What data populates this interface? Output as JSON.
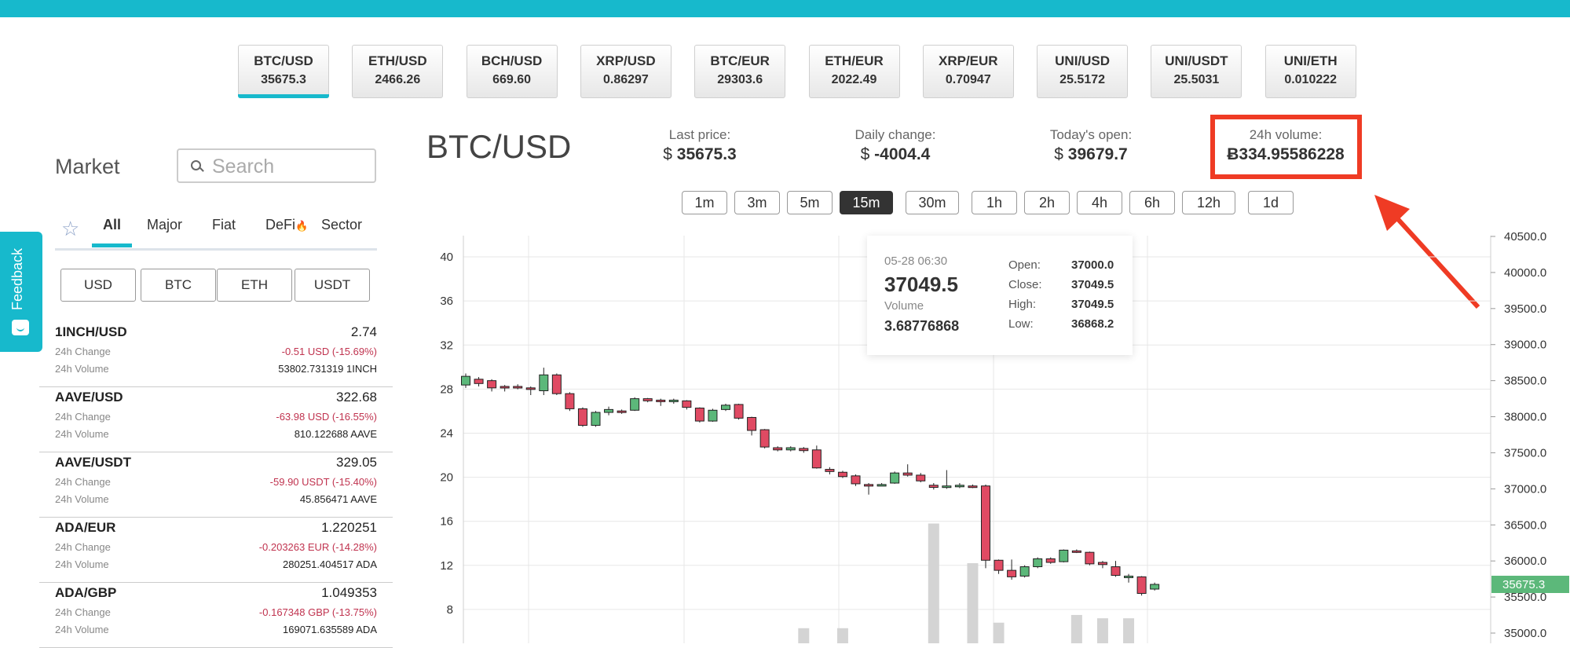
{
  "pairs": [
    {
      "name": "BTC/USD",
      "price": "35675.3"
    },
    {
      "name": "ETH/USD",
      "price": "2466.26"
    },
    {
      "name": "BCH/USD",
      "price": "669.60"
    },
    {
      "name": "XRP/USD",
      "price": "0.86297"
    },
    {
      "name": "BTC/EUR",
      "price": "29303.6"
    },
    {
      "name": "ETH/EUR",
      "price": "2022.49"
    },
    {
      "name": "XRP/EUR",
      "price": "0.70947"
    },
    {
      "name": "UNI/USD",
      "price": "25.5172"
    },
    {
      "name": "UNI/USDT",
      "price": "25.5031"
    },
    {
      "name": "UNI/ETH",
      "price": "0.010222"
    }
  ],
  "feedback_label": "Feedback",
  "market": {
    "title": "Market",
    "search_placeholder": "Search",
    "tabs": [
      "All",
      "Major",
      "Fiat",
      "DeFi",
      "Sector"
    ],
    "quote_filters": [
      "USD",
      "BTC",
      "ETH",
      "USDT"
    ],
    "change_label": "24h Change",
    "volume_label": "24h Volume",
    "items": [
      {
        "pair": "1INCH/USD",
        "price": "2.74",
        "change": "-0.51 USD  (-15.69%)",
        "volume": "53802.731319 1INCH"
      },
      {
        "pair": "AAVE/USD",
        "price": "322.68",
        "change": "-63.98 USD  (-16.55%)",
        "volume": "810.122688 AAVE"
      },
      {
        "pair": "AAVE/USDT",
        "price": "329.05",
        "change": "-59.90 USDT  (-15.40%)",
        "volume": "45.856471 AAVE"
      },
      {
        "pair": "ADA/EUR",
        "price": "1.220251",
        "change": "-0.203263 EUR  (-14.28%)",
        "volume": "280251.404517 ADA"
      },
      {
        "pair": "ADA/GBP",
        "price": "1.049353",
        "change": "-0.167348 GBP  (-13.75%)",
        "volume": "169071.635589 ADA"
      }
    ]
  },
  "header": {
    "pair": "BTC/USD",
    "last_price_label": "Last price:",
    "last_price_symbol": "$",
    "last_price": "35675.3",
    "daily_change_label": "Daily change:",
    "daily_change_symbol": "$",
    "daily_change": "-4004.4",
    "open_label": "Today's open:",
    "open_symbol": "$",
    "open": "39679.7",
    "volume_label": "24h volume:",
    "volume_symbol": "Ƀ",
    "volume": "334.95586228"
  },
  "timeframes": [
    "1m",
    "3m",
    "5m",
    "15m",
    "30m",
    "1h",
    "2h",
    "4h",
    "6h",
    "12h",
    "1d"
  ],
  "active_timeframe": "15m",
  "tooltip": {
    "date": "05-28 06:30",
    "price": "37049.5",
    "volume_label": "Volume",
    "volume": "3.68776868",
    "open_label": "Open:",
    "open": "37000.0",
    "close_label": "Close:",
    "close": "37049.5",
    "high_label": "High:",
    "high": "37049.5",
    "low_label": "Low:",
    "low": "36868.2"
  },
  "chart_data": {
    "type": "candlestick",
    "price_axis_ticks": [
      "35000.0",
      "35500.0",
      "36000.0",
      "36500.0",
      "37000.0",
      "37500.0",
      "38000.0",
      "38500.0",
      "39000.0",
      "39500.0",
      "40000.0",
      "40500.0"
    ],
    "price_range": [
      35000,
      40500
    ],
    "volume_axis_ticks": [
      "8",
      "12",
      "16",
      "20",
      "24",
      "28",
      "32",
      "36",
      "40"
    ],
    "volume_range": [
      5,
      41.5
    ],
    "current_price_label": "35675.3",
    "current_price": 35675.3,
    "candles": [
      {
        "o": 38440,
        "c": 38560,
        "h": 38600,
        "l": 38400
      },
      {
        "o": 38520,
        "c": 38460,
        "h": 38550,
        "l": 38420
      },
      {
        "o": 38500,
        "c": 38400,
        "h": 38520,
        "l": 38350
      },
      {
        "o": 38420,
        "c": 38400,
        "h": 38440,
        "l": 38350
      },
      {
        "o": 38420,
        "c": 38400,
        "h": 38450,
        "l": 38380
      },
      {
        "o": 38400,
        "c": 38380,
        "h": 38420,
        "l": 38300
      },
      {
        "o": 38360,
        "c": 38580,
        "h": 38680,
        "l": 38300
      },
      {
        "o": 38580,
        "c": 38320,
        "h": 38600,
        "l": 38300
      },
      {
        "o": 38320,
        "c": 38110,
        "h": 38340,
        "l": 38080
      },
      {
        "o": 38110,
        "c": 37880,
        "h": 38130,
        "l": 37860
      },
      {
        "o": 37880,
        "c": 38060,
        "h": 38080,
        "l": 37860
      },
      {
        "o": 38060,
        "c": 38100,
        "h": 38140,
        "l": 38020
      },
      {
        "o": 38080,
        "c": 38060,
        "h": 38100,
        "l": 38040
      },
      {
        "o": 38090,
        "c": 38250,
        "h": 38270,
        "l": 38080
      },
      {
        "o": 38250,
        "c": 38220,
        "h": 38260,
        "l": 38200
      },
      {
        "o": 38230,
        "c": 38210,
        "h": 38250,
        "l": 38150
      },
      {
        "o": 38210,
        "c": 38230,
        "h": 38250,
        "l": 38180
      },
      {
        "o": 38220,
        "c": 38130,
        "h": 38230,
        "l": 38100
      },
      {
        "o": 38120,
        "c": 37940,
        "h": 38130,
        "l": 37920
      },
      {
        "o": 37940,
        "c": 38090,
        "h": 38110,
        "l": 37930
      },
      {
        "o": 38100,
        "c": 38160,
        "h": 38180,
        "l": 38080
      },
      {
        "o": 38170,
        "c": 37980,
        "h": 38180,
        "l": 37960
      },
      {
        "o": 37990,
        "c": 37810,
        "h": 38000,
        "l": 37740
      },
      {
        "o": 37820,
        "c": 37580,
        "h": 37830,
        "l": 37560
      },
      {
        "o": 37570,
        "c": 37540,
        "h": 37590,
        "l": 37520
      },
      {
        "o": 37540,
        "c": 37570,
        "h": 37590,
        "l": 37520
      },
      {
        "o": 37560,
        "c": 37530,
        "h": 37580,
        "l": 37500
      },
      {
        "o": 37540,
        "c": 37290,
        "h": 37600,
        "l": 37280
      },
      {
        "o": 37270,
        "c": 37240,
        "h": 37300,
        "l": 37200
      },
      {
        "o": 37230,
        "c": 37170,
        "h": 37250,
        "l": 37150
      },
      {
        "o": 37180,
        "c": 37070,
        "h": 37200,
        "l": 37040
      },
      {
        "o": 37060,
        "c": 37040,
        "h": 37080,
        "l": 36920
      },
      {
        "o": 37050,
        "c": 37060,
        "h": 37080,
        "l": 37040
      },
      {
        "o": 37080,
        "c": 37220,
        "h": 37240,
        "l": 37070
      },
      {
        "o": 37220,
        "c": 37190,
        "h": 37340,
        "l": 37170
      },
      {
        "o": 37190,
        "c": 37110,
        "h": 37220,
        "l": 37090
      },
      {
        "o": 37050,
        "c": 37020,
        "h": 37080,
        "l": 36990
      },
      {
        "o": 37020,
        "c": 37040,
        "h": 37260,
        "l": 37000
      },
      {
        "o": 37030,
        "c": 37050,
        "h": 37080,
        "l": 37010
      },
      {
        "o": 37040,
        "c": 37030,
        "h": 37060,
        "l": 37010
      },
      {
        "o": 37040,
        "c": 36010,
        "h": 37060,
        "l": 35900
      },
      {
        "o": 36010,
        "c": 35870,
        "h": 36020,
        "l": 35820
      },
      {
        "o": 35870,
        "c": 35780,
        "h": 36020,
        "l": 35740
      },
      {
        "o": 35790,
        "c": 35920,
        "h": 35940,
        "l": 35770
      },
      {
        "o": 35920,
        "c": 36030,
        "h": 36050,
        "l": 35900
      },
      {
        "o": 36030,
        "c": 35980,
        "h": 36050,
        "l": 35960
      },
      {
        "o": 35990,
        "c": 36150,
        "h": 36160,
        "l": 35980
      },
      {
        "o": 36140,
        "c": 36130,
        "h": 36160,
        "l": 36110
      },
      {
        "o": 36120,
        "c": 35960,
        "h": 36130,
        "l": 35940
      },
      {
        "o": 35980,
        "c": 35950,
        "h": 36000,
        "l": 35900
      },
      {
        "o": 35920,
        "c": 35800,
        "h": 36000,
        "l": 35780
      },
      {
        "o": 35780,
        "c": 35790,
        "h": 35820,
        "l": 35700
      },
      {
        "o": 35780,
        "c": 35550,
        "h": 35790,
        "l": 35520
      },
      {
        "o": 35610,
        "c": 35675,
        "h": 35700,
        "l": 35590
      }
    ],
    "volume_bars": [
      {
        "x": 26,
        "v": 6.3
      },
      {
        "x": 29,
        "v": 6.3
      },
      {
        "x": 36,
        "v": 15.8
      },
      {
        "x": 39,
        "v": 12.2
      },
      {
        "x": 41,
        "v": 6.8
      },
      {
        "x": 47,
        "v": 7.5
      },
      {
        "x": 49,
        "v": 7.2
      },
      {
        "x": 51,
        "v": 7.2
      }
    ],
    "colors": {
      "up": "#5cb87a",
      "down": "#e04a63",
      "volume": "#d4d4d4",
      "last_price": "#5cb87a",
      "grid": "#e7e7e7"
    }
  }
}
